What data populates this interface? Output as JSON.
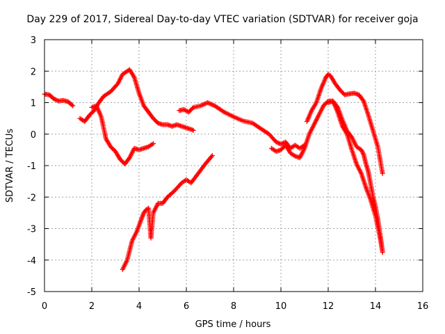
{
  "chart_data": {
    "type": "scatter",
    "title": "Day 229 of 2017, Sidereal Day-to-day VTEC variation (SDTVAR) for receiver goja",
    "xlabel": "GPS time / hours",
    "ylabel": "SDTVAR / TECUs",
    "xlim": [
      0,
      16
    ],
    "ylim": [
      -5,
      3
    ],
    "xticks": [
      0,
      2,
      4,
      6,
      8,
      10,
      12,
      14,
      16
    ],
    "yticks": [
      -5,
      -4,
      -3,
      -2,
      -1,
      0,
      1,
      2,
      3
    ],
    "grid": true,
    "legend": "none",
    "marker": "+",
    "color": "#ff0000",
    "series": [
      {
        "x": [
          0.0,
          0.2,
          0.4,
          0.6,
          0.8,
          1.0,
          1.2
        ],
        "y": [
          1.27,
          1.25,
          1.12,
          1.05,
          1.07,
          1.03,
          0.9
        ]
      },
      {
        "x": [
          1.5,
          1.7,
          1.9,
          2.1,
          2.3,
          2.5,
          2.8,
          3.1,
          3.3,
          3.5,
          3.6,
          3.8,
          4.0,
          4.2,
          4.4,
          4.6,
          4.8,
          5.0,
          5.2,
          5.4,
          5.6,
          5.8,
          6.0,
          6.2,
          6.3
        ],
        "y": [
          0.5,
          0.4,
          0.6,
          0.75,
          1.0,
          1.2,
          1.35,
          1.6,
          1.9,
          2.0,
          2.05,
          1.8,
          1.3,
          0.9,
          0.7,
          0.5,
          0.35,
          0.3,
          0.3,
          0.25,
          0.3,
          0.25,
          0.2,
          0.15,
          0.12
        ]
      },
      {
        "x": [
          2.0,
          2.2,
          2.4,
          2.6,
          2.8,
          3.0,
          3.2,
          3.4,
          3.6,
          3.8,
          4.0,
          4.2,
          4.4,
          4.6
        ],
        "y": [
          0.85,
          0.9,
          0.55,
          -0.15,
          -0.4,
          -0.55,
          -0.8,
          -0.95,
          -0.75,
          -0.45,
          -0.5,
          -0.45,
          -0.4,
          -0.3
        ]
      },
      {
        "x": [
          3.3,
          3.5,
          3.7,
          3.9,
          4.1,
          4.2,
          4.3,
          4.4,
          4.5,
          4.6,
          4.8,
          5.0,
          5.2,
          5.5,
          5.8,
          6.0,
          6.2,
          6.5,
          6.8,
          7.1
        ],
        "y": [
          -4.3,
          -4.0,
          -3.4,
          -3.1,
          -2.7,
          -2.5,
          -2.4,
          -2.35,
          -3.3,
          -2.5,
          -2.2,
          -2.2,
          -2.0,
          -1.8,
          -1.55,
          -1.45,
          -1.55,
          -1.25,
          -0.95,
          -0.68
        ]
      },
      {
        "x": [
          5.7,
          5.9,
          6.1,
          6.3,
          6.6,
          6.9,
          7.2,
          7.6,
          8.0,
          8.4,
          8.8,
          9.2,
          9.5,
          9.8,
          10.0,
          10.2,
          10.4,
          10.6,
          10.8,
          11.0
        ],
        "y": [
          0.75,
          0.78,
          0.7,
          0.85,
          0.9,
          1.0,
          0.9,
          0.7,
          0.55,
          0.42,
          0.35,
          0.15,
          0.0,
          -0.25,
          -0.32,
          -0.25,
          -0.45,
          -0.35,
          -0.45,
          -0.35
        ]
      },
      {
        "x": [
          9.6,
          9.8,
          10.0,
          10.2,
          10.4,
          10.6,
          10.8,
          11.0,
          11.2,
          11.4,
          11.6,
          11.8,
          12.0,
          12.2,
          12.4,
          12.6,
          12.8,
          13.0,
          13.2,
          13.4,
          13.6,
          13.8,
          14.0,
          14.2,
          14.3
        ],
        "y": [
          -0.45,
          -0.55,
          -0.5,
          -0.35,
          -0.6,
          -0.7,
          -0.75,
          -0.45,
          0.0,
          0.3,
          0.6,
          0.9,
          1.05,
          1.05,
          0.7,
          0.25,
          0.0,
          -0.5,
          -0.95,
          -1.25,
          -1.7,
          -2.1,
          -2.6,
          -3.3,
          -3.75
        ]
      },
      {
        "x": [
          11.1,
          11.3,
          11.5,
          11.7,
          11.9,
          12.0,
          12.1,
          12.3,
          12.5,
          12.7,
          12.9,
          13.1,
          13.3,
          13.5,
          13.7,
          13.9,
          14.1,
          14.3
        ],
        "y": [
          0.4,
          0.75,
          1.0,
          1.45,
          1.8,
          1.9,
          1.85,
          1.6,
          1.4,
          1.25,
          1.28,
          1.3,
          1.25,
          1.05,
          0.6,
          0.1,
          -0.4,
          -1.25
        ]
      },
      {
        "x": [
          12.0,
          12.2,
          12.4,
          12.6,
          12.8,
          13.0,
          13.2,
          13.4,
          13.5,
          13.6,
          13.7,
          13.8,
          13.9,
          14.0,
          14.1,
          14.2,
          14.3
        ],
        "y": [
          1.0,
          1.05,
          0.85,
          0.45,
          0.1,
          -0.1,
          -0.4,
          -0.5,
          -0.65,
          -0.95,
          -1.2,
          -1.6,
          -2.0,
          -2.3,
          -2.7,
          -3.2,
          -3.75
        ]
      }
    ]
  }
}
